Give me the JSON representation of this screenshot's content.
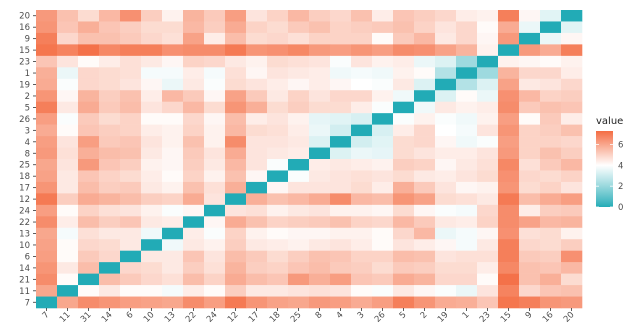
{
  "chart_data": {
    "type": "heatmap",
    "title": "",
    "xlabel": "",
    "ylabel": "",
    "x_categories": [
      "7",
      "11",
      "31",
      "14",
      "6",
      "10",
      "13",
      "22",
      "24",
      "12",
      "17",
      "18",
      "25",
      "8",
      "4",
      "3",
      "26",
      "5",
      "2",
      "19",
      "1",
      "23",
      "15",
      "9",
      "16",
      "20"
    ],
    "y_categories_top_to_bottom": [
      "20",
      "16",
      "9",
      "15",
      "23",
      "1",
      "19",
      "2",
      "5",
      "26",
      "3",
      "4",
      "8",
      "25",
      "18",
      "17",
      "12",
      "24",
      "22",
      "13",
      "10",
      "6",
      "14",
      "21",
      "11",
      "7"
    ],
    "values_top_to_bottom": [
      [
        6.3,
        5.4,
        4.8,
        5.6,
        6.5,
        5.1,
        4.3,
        5.7,
        5.2,
        6.2,
        4.6,
        5.0,
        5.6,
        5.1,
        4.9,
        5.4,
        4.4,
        5.3,
        5.1,
        4.9,
        4.4,
        4.3,
        6.9,
        4.2,
        3.4,
        0
      ],
      [
        6.4,
        5.3,
        5.8,
        5.3,
        5.1,
        4.8,
        4.8,
        5.6,
        5.1,
        5.9,
        5.0,
        4.8,
        5.2,
        5.4,
        5.0,
        5.1,
        5.2,
        5.4,
        5.0,
        4.6,
        4.9,
        4.1,
        5.9,
        3.6,
        0,
        3.4
      ],
      [
        6.9,
        4.9,
        5.4,
        5.4,
        5.2,
        4.9,
        4.7,
        6.1,
        4.4,
        5.5,
        4.8,
        4.9,
        4.7,
        5.0,
        5.0,
        5.0,
        4.1,
        5.2,
        5.6,
        4.5,
        4.9,
        4.2,
        6.3,
        0,
        3.6,
        4.2
      ],
      [
        7.1,
        6.8,
        7.2,
        6.7,
        6.9,
        6.9,
        6.5,
        6.6,
        6.6,
        7.0,
        6.4,
        6.5,
        6.7,
        6.3,
        6.2,
        6.4,
        6.2,
        6.6,
        6.5,
        6.1,
        5.7,
        4.3,
        0,
        6.3,
        5.9,
        6.9
      ],
      [
        5.3,
        4.6,
        4.1,
        4.4,
        4.7,
        4.5,
        4.2,
        5.0,
        4.9,
        4.5,
        4.3,
        4.8,
        4.7,
        4.6,
        3.9,
        4.6,
        4.3,
        4.4,
        3.6,
        3.3,
        2.1,
        0,
        4.3,
        4.2,
        4.1,
        4.3
      ],
      [
        5.8,
        3.6,
        4.9,
        4.8,
        4.7,
        3.8,
        3.8,
        4.4,
        3.8,
        4.7,
        4.2,
        4.6,
        4.5,
        4.4,
        3.7,
        3.8,
        3.7,
        4.3,
        4.1,
        2.5,
        0,
        2.1,
        5.7,
        4.9,
        4.9,
        4.4
      ],
      [
        5.9,
        3.9,
        4.9,
        4.8,
        4.6,
        4.2,
        3.6,
        4.5,
        3.9,
        4.8,
        4.6,
        4.4,
        4.2,
        4.4,
        4.2,
        4.0,
        3.9,
        4.5,
        3.3,
        0,
        2.5,
        3.3,
        6.1,
        4.5,
        4.6,
        4.9
      ],
      [
        6.4,
        4.2,
        5.7,
        5.1,
        5.4,
        4.4,
        5.6,
        5.2,
        4.2,
        6.1,
        5.2,
        4.5,
        5.0,
        4.6,
        4.9,
        4.9,
        4.3,
        3.7,
        0,
        3.3,
        4.1,
        3.6,
        6.5,
        5.6,
        5.0,
        5.1
      ],
      [
        6.9,
        4.5,
        5.9,
        5.2,
        5.5,
        4.6,
        4.9,
        5.6,
        4.8,
        6.4,
        5.8,
        4.8,
        5.1,
        4.8,
        4.8,
        4.4,
        3.9,
        0,
        3.7,
        4.5,
        4.3,
        4.4,
        6.6,
        5.2,
        5.4,
        5.3
      ],
      [
        6.2,
        3.9,
        5.2,
        4.8,
        5.0,
        4.1,
        4.1,
        4.9,
        4.2,
        5.5,
        4.4,
        4.6,
        4.3,
        3.5,
        3.4,
        3.2,
        0,
        3.9,
        4.3,
        3.9,
        3.7,
        4.3,
        6.2,
        4.1,
        5.2,
        4.4
      ],
      [
        5.9,
        4.1,
        5.3,
        5.1,
        5.0,
        4.4,
        4.3,
        5.0,
        4.3,
        5.6,
        4.8,
        4.7,
        4.4,
        3.6,
        3.1,
        0,
        3.2,
        4.4,
        4.9,
        4.0,
        3.8,
        4.6,
        6.4,
        5.0,
        5.1,
        5.4
      ],
      [
        6.2,
        4.6,
        6.2,
        5.2,
        5.3,
        4.6,
        4.3,
        5.4,
        4.3,
        6.6,
        4.6,
        4.6,
        4.5,
        3.3,
        0,
        3.1,
        3.4,
        4.8,
        4.9,
        4.2,
        3.7,
        3.9,
        6.2,
        5.0,
        5.0,
        4.9
      ],
      [
        6.3,
        4.7,
        5.8,
        5.5,
        5.4,
        4.5,
        4.2,
        5.2,
        4.6,
        5.9,
        4.6,
        4.5,
        4.4,
        0,
        3.3,
        3.6,
        3.5,
        4.8,
        4.6,
        4.4,
        4.4,
        4.6,
        6.3,
        5.0,
        5.4,
        5.1
      ],
      [
        6.0,
        4.6,
        6.3,
        5.3,
        5.1,
        4.3,
        4.2,
        5.1,
        4.5,
        5.6,
        4.6,
        3.9,
        0,
        4.4,
        4.5,
        4.4,
        4.3,
        5.1,
        5.0,
        4.2,
        4.5,
        4.7,
        6.7,
        4.7,
        5.2,
        5.6
      ],
      [
        6.1,
        4.5,
        5.3,
        5.0,
        4.8,
        4.4,
        4.1,
        5.0,
        4.3,
        5.4,
        4.2,
        0,
        3.9,
        4.5,
        4.6,
        4.7,
        4.6,
        4.8,
        4.5,
        4.4,
        4.6,
        4.8,
        6.5,
        4.9,
        4.8,
        5.0
      ],
      [
        6.4,
        4.5,
        5.5,
        5.1,
        5.2,
        4.5,
        4.3,
        5.4,
        4.7,
        5.8,
        0,
        4.2,
        4.6,
        4.6,
        4.6,
        4.8,
        4.4,
        5.8,
        5.2,
        4.6,
        4.2,
        4.3,
        6.4,
        4.8,
        5.0,
        4.6
      ],
      [
        7.0,
        5.1,
        5.9,
        5.7,
        5.5,
        5.1,
        5.0,
        5.9,
        4.6,
        0,
        5.8,
        5.4,
        5.6,
        5.9,
        6.6,
        5.6,
        5.5,
        6.4,
        6.1,
        4.8,
        4.7,
        4.5,
        7.0,
        5.5,
        5.9,
        6.2
      ],
      [
        6.2,
        4.1,
        5.0,
        4.7,
        4.6,
        4.3,
        3.9,
        4.2,
        0,
        4.6,
        4.7,
        4.3,
        4.5,
        4.6,
        4.3,
        4.3,
        4.2,
        4.8,
        4.2,
        3.9,
        3.8,
        4.9,
        6.6,
        4.4,
        5.1,
        5.2
      ],
      [
        6.6,
        4.4,
        5.5,
        5.1,
        5.3,
        4.5,
        4.4,
        0,
        4.2,
        5.9,
        5.4,
        5.0,
        5.1,
        5.2,
        5.4,
        5.0,
        4.9,
        5.6,
        5.2,
        4.5,
        4.4,
        5.0,
        6.6,
        6.1,
        5.6,
        5.7
      ],
      [
        6.0,
        3.8,
        4.7,
        4.5,
        4.5,
        3.7,
        0,
        4.4,
        3.9,
        5.0,
        4.3,
        4.1,
        4.2,
        4.2,
        4.3,
        4.3,
        4.1,
        4.9,
        5.6,
        3.6,
        3.8,
        4.2,
        6.5,
        4.7,
        4.8,
        4.3
      ],
      [
        6.1,
        4.1,
        4.9,
        4.8,
        4.5,
        0,
        3.7,
        4.5,
        4.3,
        5.1,
        4.5,
        4.4,
        4.3,
        4.5,
        4.6,
        4.4,
        4.1,
        4.6,
        4.4,
        4.2,
        3.8,
        4.5,
        6.9,
        4.9,
        4.8,
        5.1
      ],
      [
        6.2,
        4.1,
        5.2,
        4.9,
        0,
        4.5,
        4.5,
        5.3,
        4.6,
        5.5,
        5.2,
        4.8,
        5.1,
        5.4,
        5.3,
        5.0,
        5.0,
        5.5,
        5.4,
        4.6,
        4.7,
        4.7,
        6.9,
        5.2,
        5.1,
        6.5
      ],
      [
        6.4,
        4.5,
        5.5,
        0,
        4.9,
        4.8,
        4.5,
        5.1,
        4.7,
        5.7,
        5.1,
        5.0,
        5.3,
        5.5,
        5.2,
        5.1,
        4.8,
        5.2,
        5.1,
        4.8,
        4.8,
        4.4,
        6.7,
        5.4,
        5.3,
        5.6
      ],
      [
        6.6,
        4.1,
        0,
        5.5,
        5.2,
        4.9,
        4.7,
        5.5,
        5.0,
        5.9,
        5.5,
        5.3,
        6.3,
        5.8,
        6.2,
        5.3,
        5.2,
        5.9,
        5.7,
        4.9,
        4.9,
        4.1,
        7.2,
        5.4,
        5.8,
        4.8
      ],
      [
        6.0,
        0,
        4.1,
        4.5,
        4.1,
        4.1,
        3.8,
        4.4,
        4.1,
        5.1,
        4.5,
        4.5,
        4.6,
        4.7,
        4.6,
        4.1,
        3.9,
        4.5,
        4.2,
        3.9,
        3.6,
        4.6,
        6.8,
        4.9,
        5.3,
        5.4
      ],
      [
        0,
        6.0,
        6.6,
        6.4,
        6.2,
        6.1,
        6.0,
        6.6,
        6.2,
        7.0,
        6.4,
        6.1,
        6.0,
        6.3,
        6.2,
        5.9,
        6.2,
        6.9,
        6.4,
        5.9,
        5.8,
        5.3,
        7.1,
        6.9,
        6.4,
        6.3
      ]
    ],
    "legend": {
      "title": "value",
      "position": "right",
      "ticks": [
        0,
        2,
        4,
        6
      ],
      "range": [
        0,
        7.3
      ],
      "colors": {
        "low": "#22abb6",
        "mid": "#ffffff",
        "high": "#f46d43",
        "mid_value": 4
      }
    },
    "grid": false
  }
}
